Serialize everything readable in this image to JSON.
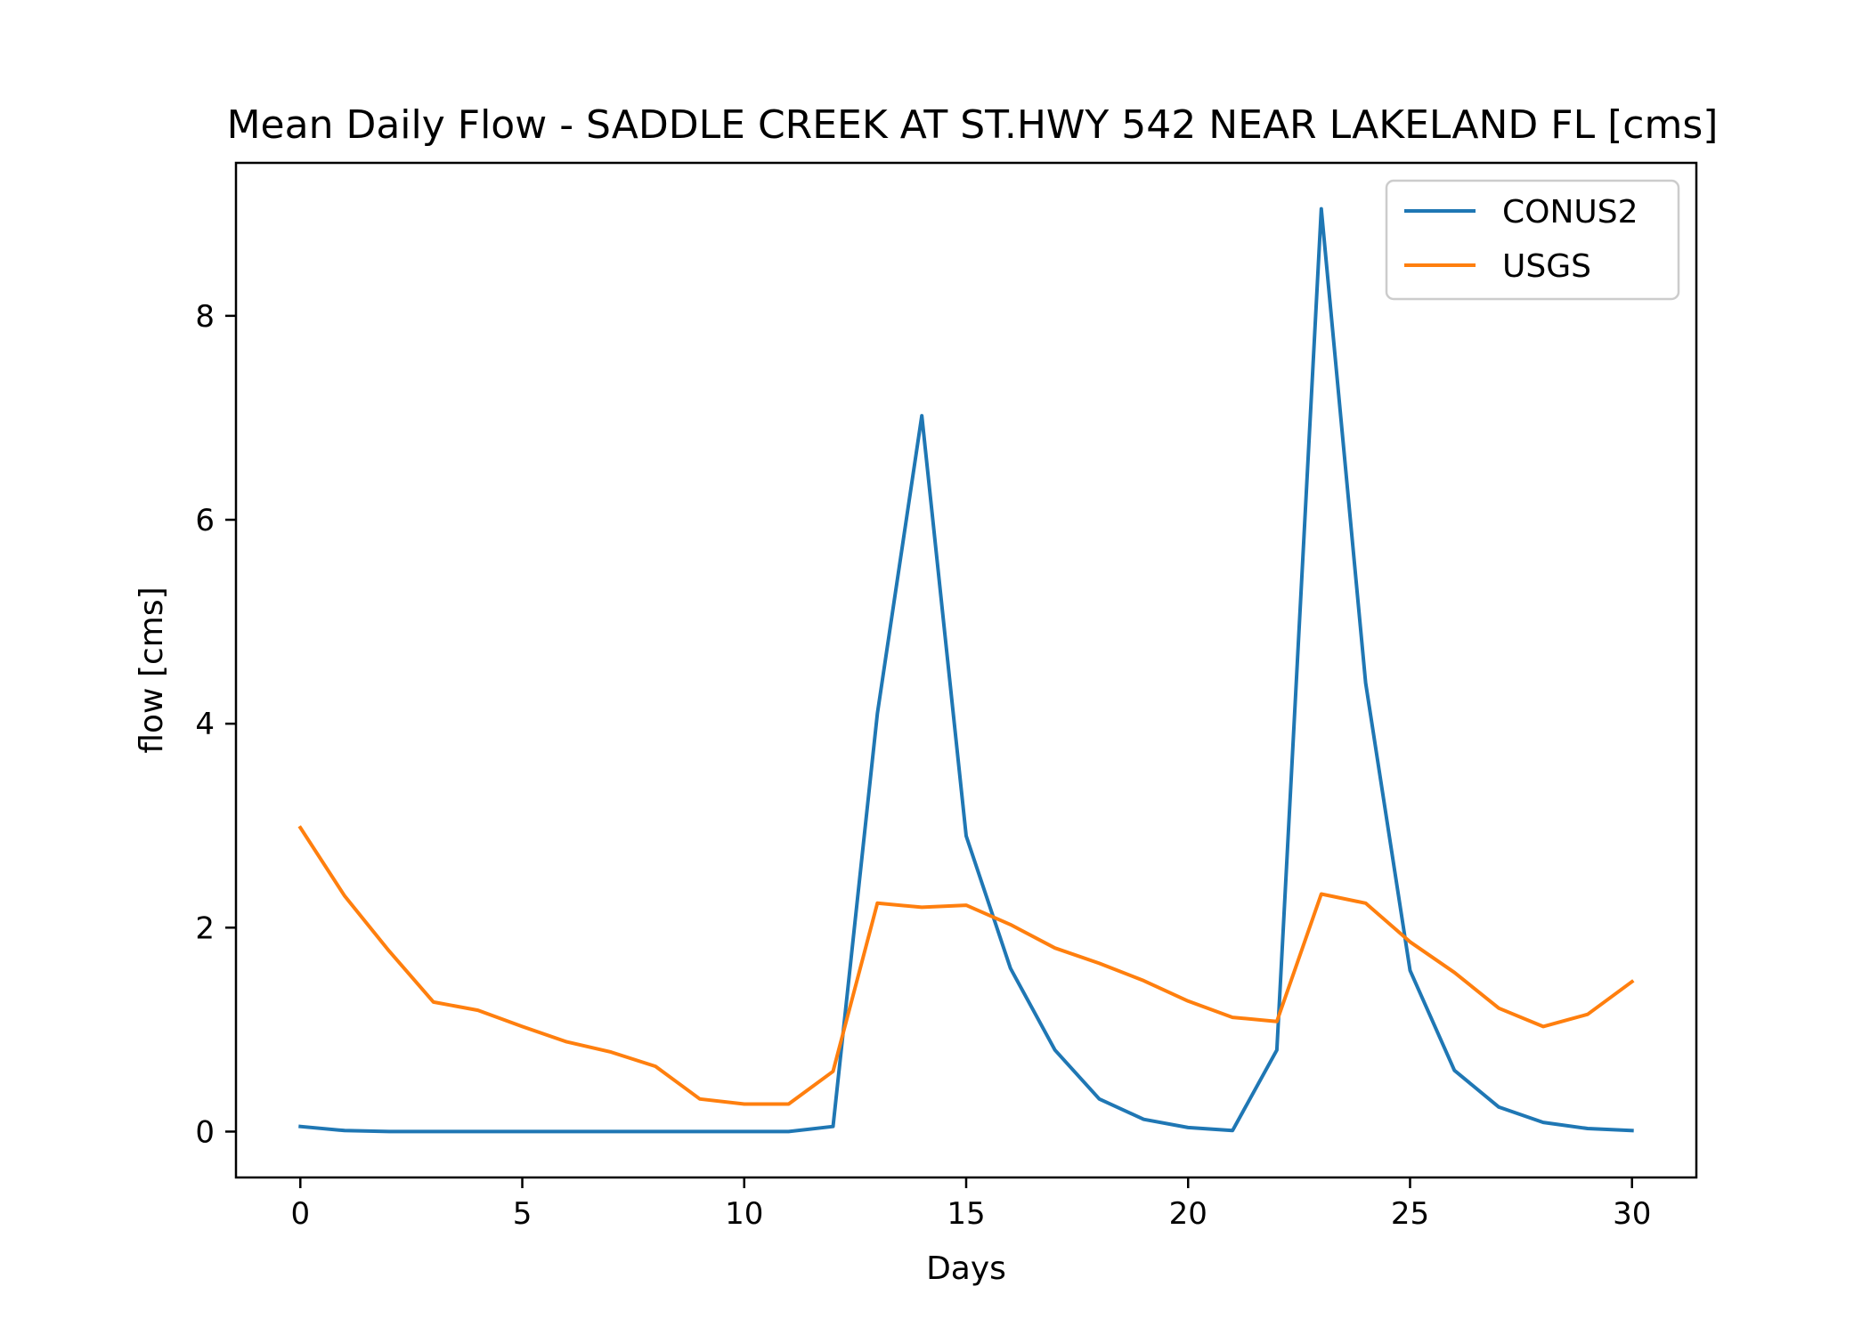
{
  "chart_data": {
    "type": "line",
    "title": "Mean Daily Flow - SADDLE CREEK AT ST.HWY 542 NEAR LAKELAND FL [cms]",
    "xlabel": "Days",
    "ylabel": "flow [cms]",
    "xlim": [
      -1.45,
      31.45
    ],
    "ylim": [
      -0.45,
      9.5
    ],
    "xticks": [
      0,
      5,
      10,
      15,
      20,
      25,
      30
    ],
    "yticks": [
      0,
      2,
      4,
      6,
      8
    ],
    "grid": false,
    "legend_position": "top-right",
    "x": [
      0,
      1,
      2,
      3,
      4,
      5,
      6,
      7,
      8,
      9,
      10,
      11,
      12,
      13,
      14,
      15,
      16,
      17,
      18,
      19,
      20,
      21,
      22,
      23,
      24,
      25,
      26,
      27,
      28,
      29,
      30
    ],
    "series": [
      {
        "name": "CONUS2",
        "color": "#1f77b4",
        "values": [
          0.05,
          0.01,
          0.0,
          0.0,
          0.0,
          0.0,
          0.0,
          0.0,
          0.0,
          0.0,
          0.0,
          0.0,
          0.05,
          4.1,
          7.02,
          2.9,
          1.6,
          0.8,
          0.32,
          0.12,
          0.04,
          0.01,
          0.8,
          9.05,
          4.4,
          1.58,
          0.6,
          0.24,
          0.09,
          0.03,
          0.01
        ]
      },
      {
        "name": "USGS",
        "color": "#ff7f0e",
        "values": [
          2.98,
          2.31,
          1.77,
          1.27,
          1.19,
          1.03,
          0.88,
          0.78,
          0.64,
          0.32,
          0.27,
          0.27,
          0.59,
          2.24,
          2.2,
          2.22,
          2.03,
          1.8,
          1.65,
          1.48,
          1.28,
          1.12,
          1.08,
          2.33,
          2.24,
          1.86,
          1.56,
          1.21,
          1.03,
          1.15,
          1.47
        ]
      }
    ]
  }
}
